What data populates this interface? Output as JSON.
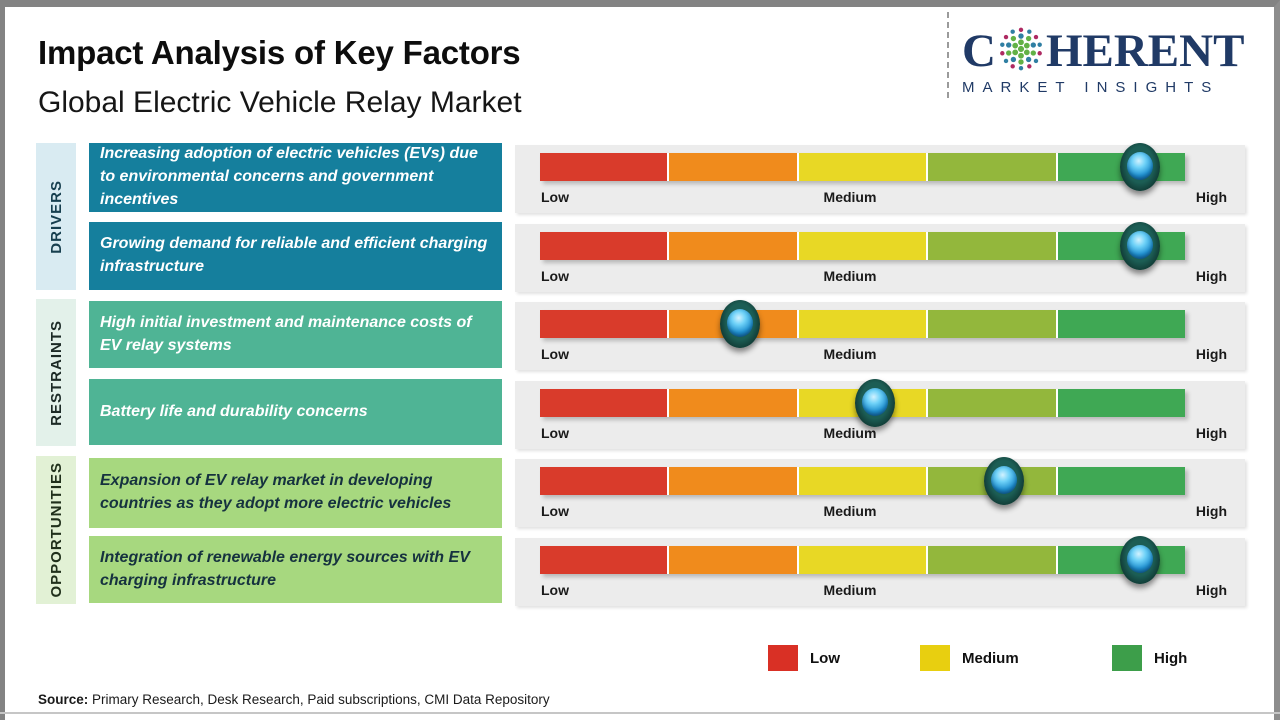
{
  "header": {
    "title": "Impact Analysis of Key Factors",
    "subtitle": "Global Electric Vehicle Relay Market"
  },
  "logo": {
    "brand_pre": "C",
    "brand_post": "HERENT",
    "tagline": "MARKET INSIGHTS",
    "brand_color": "#203a66",
    "globe_dot_colors": [
      "#ae2a62",
      "#2f7fa3",
      "#62b146"
    ]
  },
  "sections": [
    {
      "label": "DRIVERS",
      "strip_color": "#d9ebf2",
      "box_color": "#157f9d"
    },
    {
      "label": "RESTRAINTS",
      "strip_color": "#e3f1ea",
      "box_color": "#4fb495"
    },
    {
      "label": "OPPORTUNITIES",
      "strip_color": "#e2f1d5",
      "box_color": "#a7d87f"
    }
  ],
  "rows": [
    {
      "section": "DRIVERS",
      "text": "Increasing adoption of electric vehicles (EVs) due to environmental concerns and government incentives",
      "knob_pct": 93,
      "approx_level": "High"
    },
    {
      "section": "DRIVERS",
      "text": "Growing demand for reliable and efficient charging infrastructure",
      "knob_pct": 93,
      "approx_level": "High"
    },
    {
      "section": "RESTRAINTS",
      "text": "High initial investment and maintenance costs of EV relay systems",
      "knob_pct": 31,
      "approx_level": "Low-Medium"
    },
    {
      "section": "RESTRAINTS",
      "text": "Battery life and durability concerns",
      "knob_pct": 52,
      "approx_level": "Medium"
    },
    {
      "section": "OPPORTUNITIES",
      "text": "Expansion of EV relay market in developing countries as they adopt more electric vehicles",
      "knob_pct": 72,
      "approx_level": "Medium-High"
    },
    {
      "section": "OPPORTUNITIES",
      "text": "Integration of renewable energy sources with EV charging infrastructure",
      "knob_pct": 93,
      "approx_level": "High"
    }
  ],
  "gauge": {
    "labels": [
      "Low",
      "Medium",
      "High"
    ],
    "segment_colors": [
      "#d93b2b",
      "#f08b1c",
      "#e8d825",
      "#93b73c",
      "#3fa854"
    ],
    "panel_color": "#ececec",
    "knob_colors": {
      "ring": "#123f39",
      "center": "#1f8fd0"
    }
  },
  "legend": [
    {
      "label": "Low",
      "color": "#d93025"
    },
    {
      "label": "Medium",
      "color": "#e8cf10"
    },
    {
      "label": "High",
      "color": "#3d9e4a"
    }
  ],
  "source": {
    "label": "Source:",
    "text": " Primary Research, Desk Research, Paid subscriptions, CMI Data Repository"
  }
}
